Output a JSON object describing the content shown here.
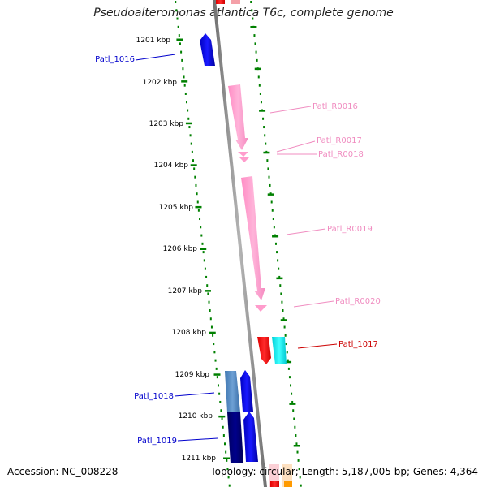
{
  "title": "Pseudoalteromonas atlantica T6c, complete genome",
  "footer": {
    "accession": "Accession: NC_008228",
    "stats": "Topology: circular; Length: 5,187,005 bp; Genes: 4,364"
  },
  "scale_labels": [
    "1201 kbp",
    "1202 kbp",
    "1203 kbp",
    "1204 kbp",
    "1205 kbp",
    "1206 kbp",
    "1207 kbp",
    "1208 kbp",
    "1209 kbp",
    "1210 kbp",
    "1211 kbp"
  ],
  "gene_labels": [
    {
      "id": "Patl_1016",
      "text": "Patl_1016",
      "side": "left",
      "color": "#0000cc"
    },
    {
      "id": "Patl_R0016",
      "text": "Patl_R0016",
      "side": "right",
      "color": "#f08cc0"
    },
    {
      "id": "Patl_R0017",
      "text": "Patl_R0017",
      "side": "right",
      "color": "#f08cc0"
    },
    {
      "id": "Patl_R0018",
      "text": "Patl_R0018",
      "side": "right",
      "color": "#f08cc0"
    },
    {
      "id": "Patl_R0019",
      "text": "Patl_R0019",
      "side": "right",
      "color": "#f08cc0"
    },
    {
      "id": "Patl_R0020",
      "text": "Patl_R0020",
      "side": "right",
      "color": "#f08cc0"
    },
    {
      "id": "Patl_1017",
      "text": "Patl_1017",
      "side": "right",
      "color": "#cc0000"
    },
    {
      "id": "Patl_1018",
      "text": "Patl_1018",
      "side": "left",
      "color": "#0000cc"
    },
    {
      "id": "Patl_1019",
      "text": "Patl_1019",
      "side": "left",
      "color": "#0000cc"
    }
  ],
  "colors": {
    "backbone": "#8a8a8a",
    "scale_ticks": "#008000",
    "cds_blue": "#0000ee",
    "cds_dark_blue": "#00007a",
    "cds_steel_blue": "#4f86c0",
    "rna_pink": "#ff9ccc",
    "cds_red": "#ff0000",
    "cds_cyan": "#00e0e8"
  }
}
